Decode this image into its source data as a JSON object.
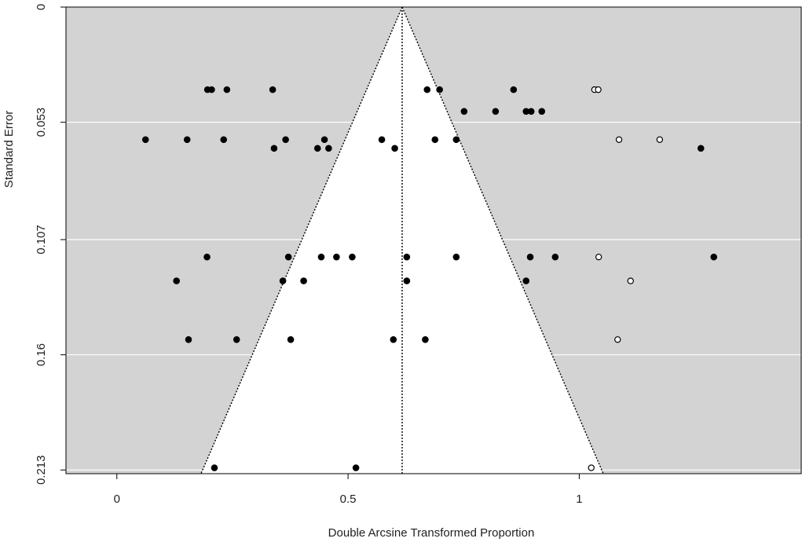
{
  "chart_data": {
    "type": "scatter",
    "subtype": "funnel-plot",
    "title": "",
    "xlabel": "Double Arcsine Transformed Proportion",
    "ylabel": "Standard Error",
    "xlim": [
      -0.11,
      1.48
    ],
    "ylim": [
      0,
      0.2147
    ],
    "y_reversed": true,
    "x_ticks": [
      0,
      0.5,
      1
    ],
    "x_tick_labels": [
      "0",
      "0.5",
      "1"
    ],
    "y_ticks": [
      0,
      0.053,
      0.107,
      0.16,
      0.213
    ],
    "y_tick_labels": [
      "0",
      "0.053",
      "0.107",
      "0.16",
      "0.213"
    ],
    "background_color": "#d3d3d3",
    "funnel_color": "#ffffff",
    "grid": true,
    "gridline_color": "#ffffff",
    "pooled_estimate": 0.617,
    "funnel_bottom": [
      0.182,
      1.052
    ],
    "series": [
      {
        "style": "filled",
        "color": "#000000",
        "points": [
          {
            "x": 0.196,
            "y": 0.038
          },
          {
            "x": 0.205,
            "y": 0.038
          },
          {
            "x": 0.238,
            "y": 0.038
          },
          {
            "x": 0.337,
            "y": 0.038
          },
          {
            "x": 0.671,
            "y": 0.038
          },
          {
            "x": 0.698,
            "y": 0.038
          },
          {
            "x": 0.858,
            "y": 0.038
          },
          {
            "x": 0.751,
            "y": 0.048
          },
          {
            "x": 0.819,
            "y": 0.048
          },
          {
            "x": 0.885,
            "y": 0.048
          },
          {
            "x": 0.896,
            "y": 0.048
          },
          {
            "x": 0.919,
            "y": 0.048
          },
          {
            "x": 0.062,
            "y": 0.061
          },
          {
            "x": 0.152,
            "y": 0.061
          },
          {
            "x": 0.231,
            "y": 0.061
          },
          {
            "x": 0.365,
            "y": 0.061
          },
          {
            "x": 0.449,
            "y": 0.061
          },
          {
            "x": 0.573,
            "y": 0.061
          },
          {
            "x": 0.688,
            "y": 0.061
          },
          {
            "x": 0.734,
            "y": 0.061
          },
          {
            "x": 0.34,
            "y": 0.065
          },
          {
            "x": 0.434,
            "y": 0.065
          },
          {
            "x": 0.458,
            "y": 0.065
          },
          {
            "x": 0.601,
            "y": 0.065
          },
          {
            "x": 1.263,
            "y": 0.065
          },
          {
            "x": 0.195,
            "y": 0.115
          },
          {
            "x": 0.371,
            "y": 0.115
          },
          {
            "x": 0.442,
            "y": 0.115
          },
          {
            "x": 0.475,
            "y": 0.115
          },
          {
            "x": 0.509,
            "y": 0.115
          },
          {
            "x": 0.627,
            "y": 0.115
          },
          {
            "x": 0.734,
            "y": 0.115
          },
          {
            "x": 0.894,
            "y": 0.115
          },
          {
            "x": 0.948,
            "y": 0.115
          },
          {
            "x": 1.291,
            "y": 0.115
          },
          {
            "x": 0.129,
            "y": 0.126
          },
          {
            "x": 0.359,
            "y": 0.126
          },
          {
            "x": 0.404,
            "y": 0.126
          },
          {
            "x": 0.627,
            "y": 0.126
          },
          {
            "x": 0.885,
            "y": 0.126
          },
          {
            "x": 0.155,
            "y": 0.153
          },
          {
            "x": 0.259,
            "y": 0.153
          },
          {
            "x": 0.376,
            "y": 0.153
          },
          {
            "x": 0.598,
            "y": 0.153
          },
          {
            "x": 0.667,
            "y": 0.153
          },
          {
            "x": 0.211,
            "y": 0.212
          },
          {
            "x": 0.517,
            "y": 0.212
          }
        ]
      },
      {
        "style": "open",
        "color": "#000000",
        "points": [
          {
            "x": 1.033,
            "y": 0.038
          },
          {
            "x": 1.041,
            "y": 0.038
          },
          {
            "x": 1.086,
            "y": 0.061
          },
          {
            "x": 1.174,
            "y": 0.061
          },
          {
            "x": 1.042,
            "y": 0.115
          },
          {
            "x": 1.111,
            "y": 0.126
          },
          {
            "x": 1.083,
            "y": 0.153
          },
          {
            "x": 1.026,
            "y": 0.212
          }
        ]
      }
    ]
  }
}
